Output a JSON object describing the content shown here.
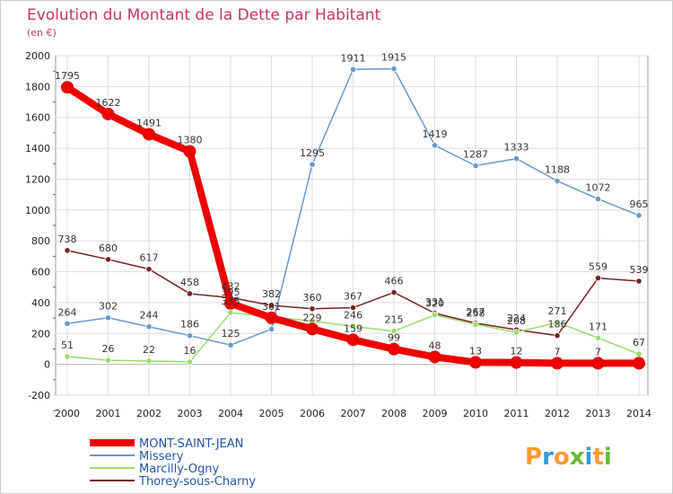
{
  "chart_data": {
    "type": "line",
    "title": "Evolution du Montant de la Dette par Habitant",
    "subtitle": "(en €)",
    "categories": [
      "2000",
      "2001",
      "2002",
      "2003",
      "2004",
      "2005",
      "2006",
      "2007",
      "2008",
      "2009",
      "2010",
      "2011",
      "2012",
      "2013",
      "2014"
    ],
    "ylim": [
      -200,
      2000
    ],
    "yticks": [
      -200,
      0,
      200,
      400,
      600,
      800,
      1000,
      1200,
      1400,
      1600,
      1800,
      2000
    ],
    "grid": true,
    "legend_placement": "bottom-left",
    "series": [
      {
        "name": "MONT-SAINT-JEAN",
        "color": "#ee0000",
        "values": [
          1795,
          1622,
          1491,
          1380,
          395,
          301,
          229,
          159,
          99,
          48,
          13,
          12,
          7,
          7,
          7
        ],
        "labels": [
          "1795",
          "1622",
          "1491",
          "1380",
          "395",
          "301",
          "229",
          "159",
          "99",
          "48",
          "13",
          "12",
          "7",
          "7",
          ""
        ]
      },
      {
        "name": "Missery",
        "color": "#6699cc",
        "values": [
          264,
          302,
          244,
          186,
          125,
          228,
          1295,
          1911,
          1915,
          1419,
          1287,
          1333,
          1188,
          1072,
          965
        ],
        "labels": [
          "264",
          "302",
          "244",
          "186",
          "125",
          "",
          "1295",
          "1911",
          "1915",
          "1419",
          "1287",
          "1333",
          "1188",
          "1072",
          "965"
        ]
      },
      {
        "name": "Marcilly-Ogny",
        "color": "#99dd66",
        "values": [
          51,
          26,
          22,
          16,
          335,
          308,
          280,
          246,
          215,
          320,
          258,
          208,
          271,
          171,
          67
        ],
        "labels": [
          "51",
          "26",
          "22",
          "16",
          "335",
          "",
          "",
          "246",
          "215",
          "320",
          "258",
          "208",
          "271",
          "171",
          "67"
        ]
      },
      {
        "name": "Thorey-sous-Charny",
        "color": "#772222",
        "values": [
          738,
          680,
          617,
          458,
          432,
          382,
          360,
          367,
          466,
          331,
          267,
          224,
          186,
          559,
          539
        ],
        "labels": [
          "738",
          "680",
          "617",
          "458",
          "432",
          "382",
          "360",
          "367",
          "466",
          "331",
          "267",
          "224",
          "186",
          "559",
          "539"
        ]
      }
    ]
  },
  "branding": {
    "logo_text": "Proxiti",
    "logo_letters": [
      "P",
      "r",
      "o",
      "x",
      "i",
      "t",
      "i"
    ],
    "logo_colors": [
      "#ff9933",
      "#3399dd",
      "#ff9933",
      "#66bb33",
      "#3399dd",
      "#ff9933",
      "#66bb33"
    ]
  }
}
